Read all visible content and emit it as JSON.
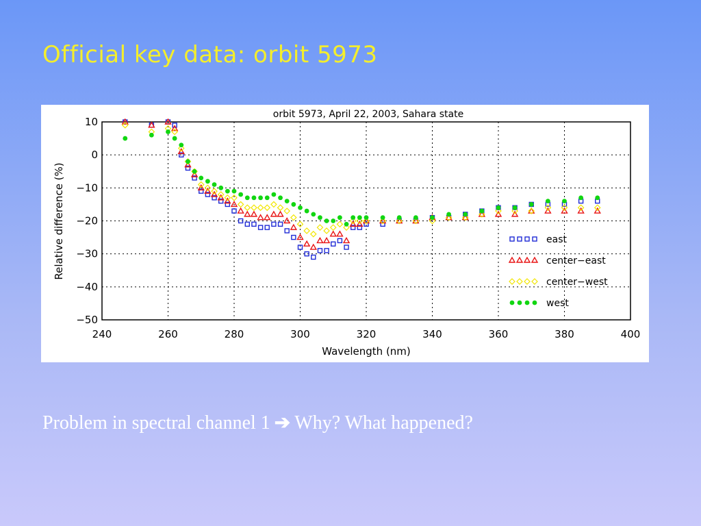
{
  "slide": {
    "title": "Official key data: orbit 5973",
    "bottom_text_before": "Problem in spectral channel 1",
    "bottom_text_after": "Why? What happened?",
    "arrow_icon": "right-arrow-icon",
    "title_color": "#f4ee2c",
    "text_color": "#ffffff"
  },
  "chart_data": {
    "type": "scatter",
    "title": "orbit 5973, April 22, 2003, Sahara state",
    "xlabel": "Wavelength (nm)",
    "ylabel": "Relative difference (%)",
    "xlim": [
      240,
      400
    ],
    "ylim": [
      -50,
      10
    ],
    "xticks": [
      240,
      260,
      280,
      300,
      320,
      340,
      360,
      380,
      400
    ],
    "yticks": [
      10,
      0,
      -10,
      -20,
      -30,
      -40,
      -50
    ],
    "grid": true,
    "legend_position": "lower-right",
    "series": [
      {
        "name": "east",
        "marker": "square",
        "color": "#1f2bd6",
        "x": [
          247,
          255,
          260,
          262,
          264,
          266,
          268,
          270,
          272,
          274,
          276,
          278,
          280,
          282,
          284,
          286,
          288,
          290,
          292,
          294,
          296,
          298,
          300,
          302,
          304,
          306,
          308,
          310,
          312,
          314,
          316,
          318,
          320,
          325,
          330,
          335,
          340,
          345,
          350,
          355,
          360,
          365,
          370,
          375,
          380,
          385,
          390
        ],
        "y": [
          10,
          9,
          10,
          9,
          0,
          -4,
          -7,
          -11,
          -12,
          -13,
          -14,
          -15,
          -17,
          -20,
          -21,
          -21,
          -22,
          -22,
          -21,
          -21,
          -23,
          -25,
          -28,
          -30,
          -31,
          -29,
          -29,
          -27,
          -26,
          -28,
          -22,
          -22,
          -21,
          -21,
          -20,
          -20,
          -19,
          -19,
          -18,
          -17,
          -16,
          -16,
          -15,
          -15,
          -15,
          -14,
          -14
        ]
      },
      {
        "name": "center−east",
        "marker": "triangle",
        "color": "#e81414",
        "x": [
          247,
          255,
          260,
          262,
          264,
          266,
          268,
          270,
          272,
          274,
          276,
          278,
          280,
          282,
          284,
          286,
          288,
          290,
          292,
          294,
          296,
          298,
          300,
          302,
          304,
          306,
          308,
          310,
          312,
          314,
          316,
          318,
          320,
          325,
          330,
          335,
          340,
          345,
          350,
          355,
          360,
          365,
          370,
          375,
          380,
          385,
          390
        ],
        "y": [
          10,
          9,
          10,
          8,
          1,
          -3,
          -6,
          -10,
          -11,
          -12,
          -13,
          -14,
          -15,
          -17,
          -18,
          -18,
          -19,
          -19,
          -18,
          -18,
          -20,
          -22,
          -25,
          -27,
          -28,
          -26,
          -26,
          -24,
          -24,
          -26,
          -21,
          -21,
          -20,
          -20,
          -20,
          -20,
          -19,
          -19,
          -19,
          -18,
          -18,
          -18,
          -17,
          -17,
          -17,
          -17,
          -17
        ]
      },
      {
        "name": "center−west",
        "marker": "diamond",
        "color": "#f2e600",
        "x": [
          247,
          255,
          260,
          262,
          264,
          266,
          268,
          270,
          272,
          274,
          276,
          278,
          280,
          282,
          284,
          286,
          288,
          290,
          292,
          294,
          296,
          298,
          300,
          302,
          304,
          306,
          308,
          310,
          312,
          314,
          316,
          318,
          320,
          325,
          330,
          335,
          340,
          345,
          350,
          355,
          360,
          365,
          370,
          375,
          380,
          385,
          390
        ],
        "y": [
          9,
          7,
          8,
          7,
          2,
          -2,
          -5,
          -9,
          -10,
          -11,
          -12,
          -13,
          -13,
          -15,
          -16,
          -16,
          -16,
          -16,
          -15,
          -16,
          -17,
          -19,
          -21,
          -23,
          -24,
          -22,
          -23,
          -22,
          -21,
          -22,
          -20,
          -20,
          -20,
          -20,
          -20,
          -20,
          -20,
          -19,
          -19,
          -18,
          -17,
          -17,
          -17,
          -16,
          -16,
          -16,
          -16
        ]
      },
      {
        "name": "west",
        "marker": "circle",
        "color": "#11d611",
        "x": [
          247,
          255,
          260,
          262,
          264,
          266,
          268,
          270,
          272,
          274,
          276,
          278,
          280,
          282,
          284,
          286,
          288,
          290,
          292,
          294,
          296,
          298,
          300,
          302,
          304,
          306,
          308,
          310,
          312,
          314,
          316,
          318,
          320,
          325,
          330,
          335,
          340,
          345,
          350,
          355,
          360,
          365,
          370,
          375,
          380,
          385,
          390
        ],
        "y": [
          5,
          6,
          7,
          5,
          3,
          -2,
          -5,
          -7,
          -8,
          -9,
          -10,
          -11,
          -11,
          -12,
          -13,
          -13,
          -13,
          -13,
          -12,
          -13,
          -14,
          -15,
          -16,
          -17,
          -18,
          -19,
          -20,
          -20,
          -19,
          -21,
          -19,
          -19,
          -19,
          -19,
          -19,
          -19,
          -19,
          -18,
          -18,
          -17,
          -16,
          -16,
          -15,
          -14,
          -14,
          -13,
          -13
        ]
      }
    ]
  }
}
